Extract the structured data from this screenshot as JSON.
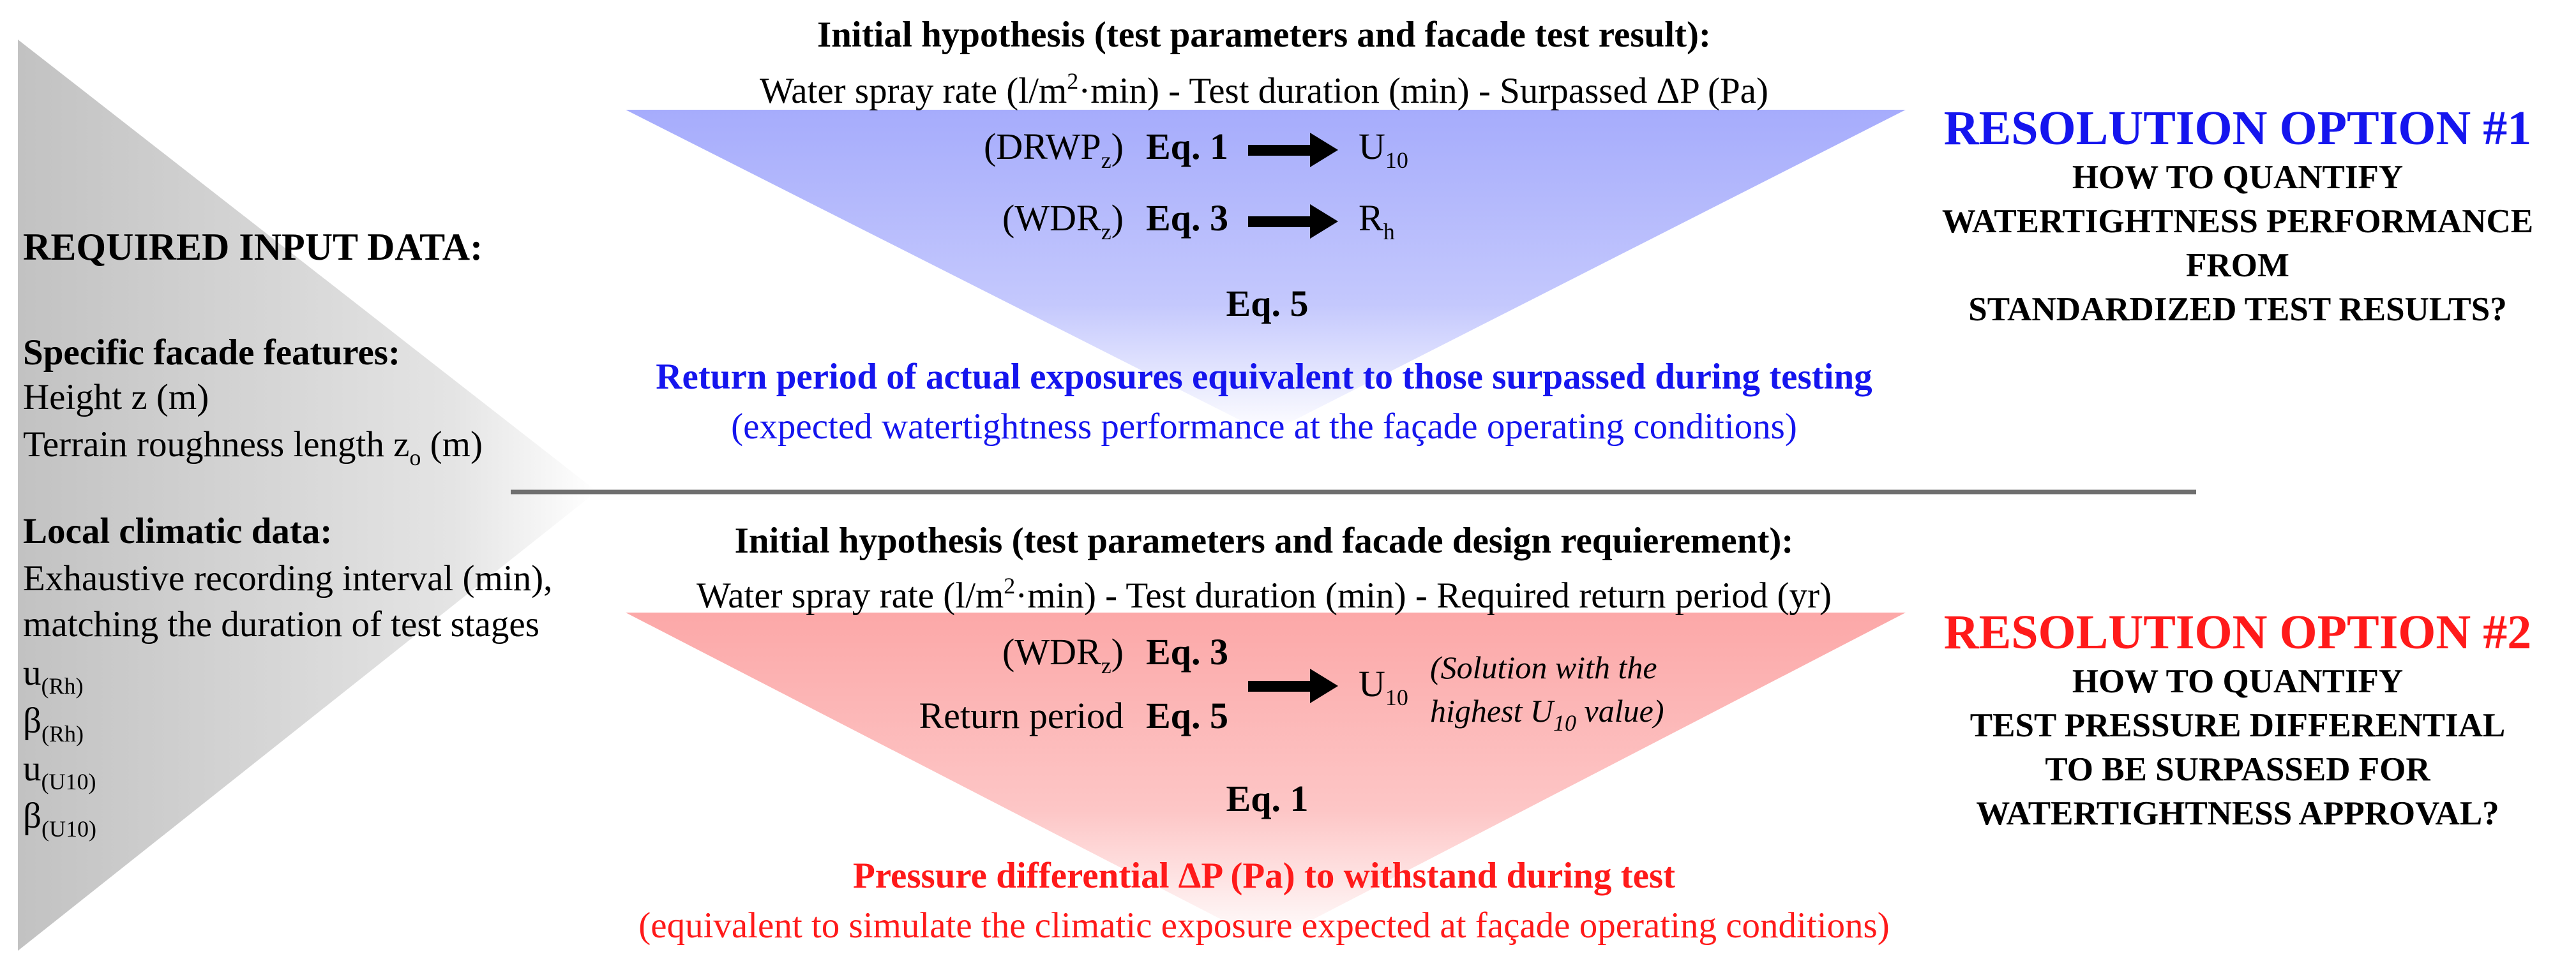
{
  "colors": {
    "top_triangle": "#a9aefc",
    "bottom_triangle": "#fcacac",
    "left_wedge": "#c8c8c8",
    "option1": "#1515ee",
    "option2": "#ff1a1a",
    "divider": "#6e6e6e"
  },
  "left": {
    "heading": "REQUIRED INPUT DATA:",
    "facade_title": "Specific facade features:",
    "height": "Height z (m)",
    "roughness_text": "Terrain roughness length z",
    "roughness_sub": "o",
    "roughness_unit": " (m)",
    "climatic_title": "Local climatic data:",
    "climatic_line1": "Exhaustive recording interval (min),",
    "climatic_line2": "matching the duration of test stages",
    "params": [
      {
        "symbol": "u",
        "sub": "(Rh)"
      },
      {
        "symbol": "β",
        "sub": "(Rh)"
      },
      {
        "symbol": "u",
        "sub": "(U10)"
      },
      {
        "symbol": "β",
        "sub": "(U10)"
      }
    ]
  },
  "top": {
    "title": "Initial hypothesis (test parameters and facade test result):",
    "params_a": "Water spray rate (l/m",
    "params_sup": "2",
    "params_b": "·min) - Test duration (min) - Surpassed ΔP (Pa)",
    "rows": [
      {
        "input": "(DRWP",
        "input_sub": "z",
        "input_close": ")",
        "eq": "Eq. 1",
        "out": "U",
        "out_sub": "10"
      },
      {
        "input": "(WDR",
        "input_sub": "z",
        "input_close": ")",
        "eq": "Eq. 3",
        "out": "R",
        "out_sub": "h"
      }
    ],
    "final_eq": "Eq. 5",
    "result_bold": "Return period of actual exposures equivalent to those surpassed during testing",
    "result_note": "(expected watertightness performance at the façade operating conditions)"
  },
  "bottom": {
    "title": "Initial hypothesis (test parameters and facade design requierement):",
    "params_a": "Water spray rate (l/m",
    "params_sup": "2",
    "params_b": "·min) - Test duration (min) - Required return period (yr)",
    "row1": {
      "input": "(WDR",
      "input_sub": "z",
      "input_close": ")",
      "eq": "Eq. 3"
    },
    "row2": {
      "input": "Return period",
      "eq": "Eq. 5"
    },
    "out": "U",
    "out_sub": "10",
    "note_line1": "(Solution with the",
    "note_line2_a": "highest U",
    "note_line2_sub": "10",
    "note_line2_b": " value)",
    "final_eq": "Eq. 1",
    "result_bold": "Pressure differential ΔP (Pa) to withstand during test",
    "result_note": "(equivalent to simulate the climatic exposure expected at façade operating conditions)"
  },
  "option1": {
    "title": "RESOLUTION OPTION #1",
    "lines": [
      "HOW TO QUANTIFY",
      "WATERTIGHTNESS PERFORMANCE",
      "FROM",
      "STANDARDIZED TEST RESULTS?"
    ]
  },
  "option2": {
    "title": "RESOLUTION OPTION #2",
    "lines": [
      "HOW TO QUANTIFY",
      "TEST PRESSURE DIFFERENTIAL",
      "TO BE SURPASSED FOR",
      "WATERTIGHTNESS APPROVAL?"
    ]
  }
}
